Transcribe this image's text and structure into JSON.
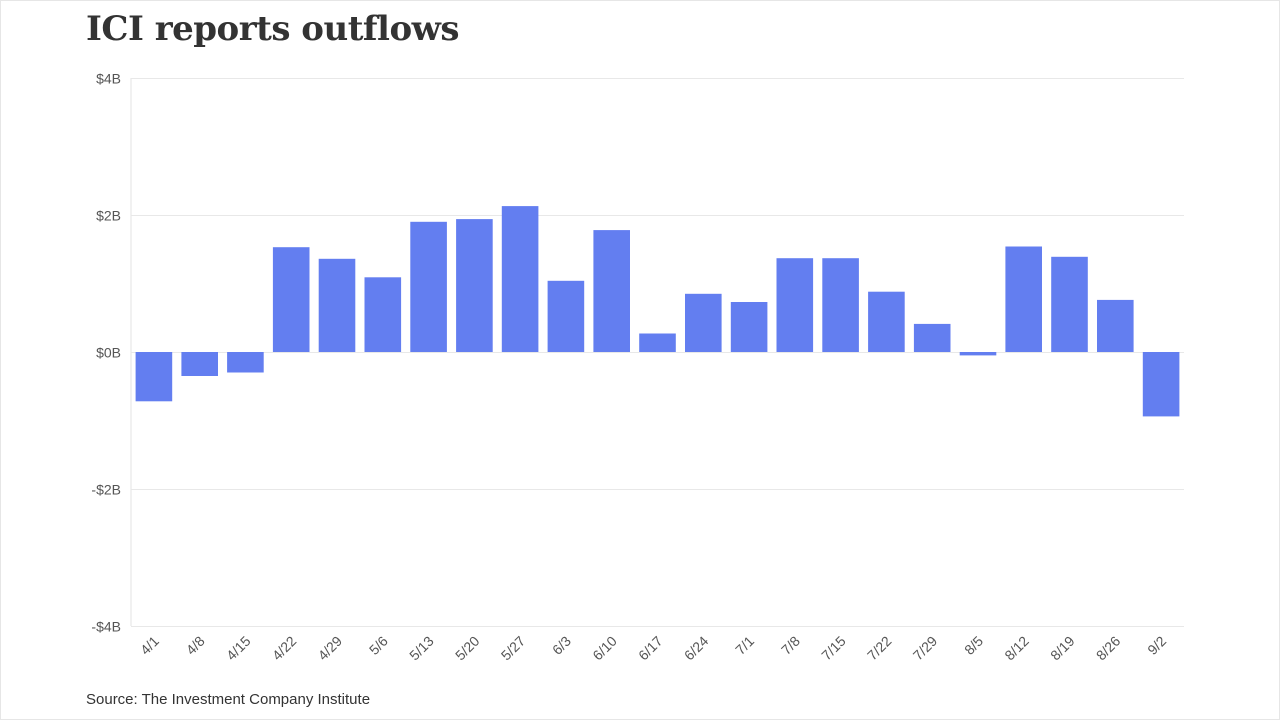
{
  "chart_data": {
    "type": "bar",
    "title": "ICI reports outflows",
    "source": "Source: The Investment Company Institute",
    "xlabel": "",
    "ylabel": "",
    "ylim": [
      -4,
      4
    ],
    "y_ticks": [
      {
        "value": 4,
        "label": "$4B"
      },
      {
        "value": 2,
        "label": "$2B"
      },
      {
        "value": 0,
        "label": "$0B"
      },
      {
        "value": -2,
        "label": "-$2B"
      },
      {
        "value": -4,
        "label": "-$4B"
      }
    ],
    "grid": true,
    "bar_color": "#637ef0",
    "categories": [
      "4/1",
      "4/8",
      "4/15",
      "4/22",
      "4/29",
      "5/6",
      "5/13",
      "5/20",
      "5/27",
      "6/3",
      "6/10",
      "6/17",
      "6/24",
      "7/1",
      "7/8",
      "7/15",
      "7/22",
      "7/29",
      "8/5",
      "8/12",
      "8/19",
      "8/26",
      "9/2"
    ],
    "values": [
      -0.72,
      -0.35,
      -0.3,
      1.53,
      1.36,
      1.09,
      1.9,
      1.94,
      2.13,
      1.04,
      1.78,
      0.27,
      0.85,
      0.73,
      1.37,
      1.37,
      0.88,
      0.41,
      -0.05,
      1.54,
      1.39,
      0.76,
      -0.94
    ]
  }
}
